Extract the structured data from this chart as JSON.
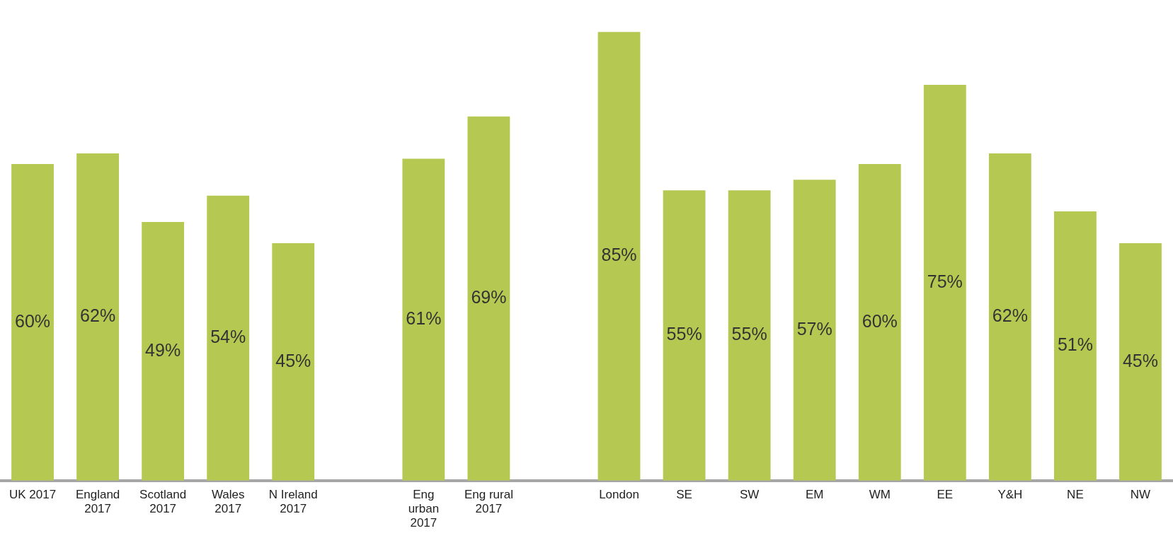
{
  "chart_data": {
    "type": "bar",
    "categories": [
      "UK 2017",
      "England 2017",
      "Scotland 2017",
      "Wales 2017",
      "N Ireland 2017",
      null,
      "Eng urban 2017",
      "Eng rural 2017",
      null,
      "London",
      "SE",
      "SW",
      "EM",
      "WM",
      "EE",
      "Y&H",
      "NE",
      "NW"
    ],
    "values": [
      60,
      62,
      49,
      54,
      45,
      null,
      61,
      69,
      null,
      85,
      55,
      55,
      57,
      60,
      75,
      62,
      51,
      45
    ],
    "color": "#b5c952",
    "value_labels": [
      "60%",
      "62%",
      "49%",
      "54%",
      "45%",
      null,
      "61%",
      "69%",
      null,
      "85%",
      "55%",
      "55%",
      "57%",
      "60%",
      "75%",
      "62%",
      "51%",
      "45%"
    ],
    "grid": false,
    "legend": false
  }
}
